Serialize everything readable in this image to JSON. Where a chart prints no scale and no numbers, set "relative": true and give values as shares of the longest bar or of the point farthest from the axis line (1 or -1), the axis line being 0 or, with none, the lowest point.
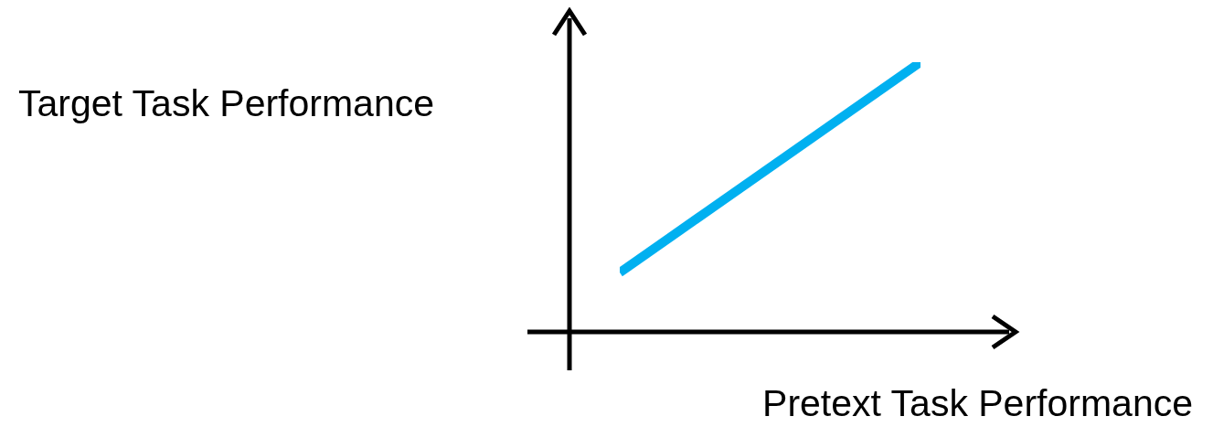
{
  "chart_data": {
    "type": "line",
    "relative": true,
    "xlabel": "Pretext Task Performance",
    "ylabel": "Target Task Performance",
    "categories": [
      null,
      null
    ],
    "series": [
      {
        "color": "#00b0f0",
        "values": [
          0.22,
          1
        ]
      }
    ],
    "marker": "none",
    "line_style": "solid",
    "grid": false,
    "legend": false
  }
}
